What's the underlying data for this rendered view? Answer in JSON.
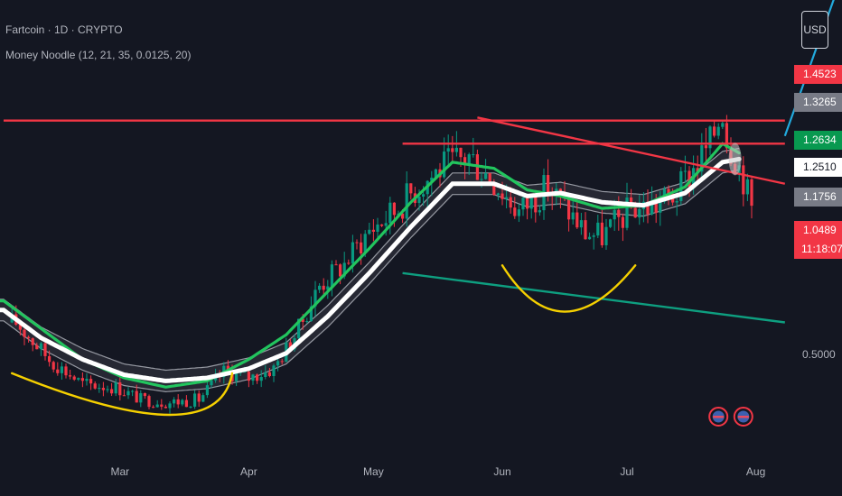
{
  "header": {
    "symbol_line": "Fartcoin · 1D · CRYPTO",
    "indicator_line": "Money Noodle (12, 21, 35, 0.0125, 20)"
  },
  "currency_button": "USD",
  "price_tags": [
    {
      "label": "1.4523",
      "color": "#f23645"
    },
    {
      "label": "1.3265",
      "color": "#787b86"
    },
    {
      "label": "1.2634",
      "color": "#089950"
    },
    {
      "label": "1.2510",
      "color": "#ffffff",
      "text_color": "#131722"
    },
    {
      "label": "1.1756",
      "color": "#787b86"
    },
    {
      "label": "1.0489",
      "color": "#f23645"
    }
  ],
  "countdown": "11:18:07",
  "price_axis_labels": [
    "0.5000"
  ],
  "colors": {
    "up": "#089981",
    "down": "#f23645",
    "band": "#9598a1",
    "fast_ma": "#22c55e",
    "slow_ma": "#ffffff",
    "resistance": "#f23645",
    "support": "#0e9f80",
    "cup": "#f5d000",
    "arrow": "#22aadd",
    "background": "#141722"
  },
  "chart_data": {
    "type": "candlestick",
    "x_ticks": [
      "Mar",
      "Apr",
      "May",
      "Jun",
      "Jul",
      "Aug"
    ],
    "ylim": [
      0.38,
      1.58
    ],
    "close_path": [
      [
        "2025-02-04",
        0.68
      ],
      [
        "2025-02-12",
        0.56
      ],
      [
        "2025-02-20",
        0.48
      ],
      [
        "2025-02-28",
        0.47
      ],
      [
        "2025-03-06",
        0.43
      ],
      [
        "2025-03-13",
        0.42
      ],
      [
        "2025-03-20",
        0.43
      ],
      [
        "2025-03-26",
        0.52
      ],
      [
        "2025-04-01",
        0.5
      ],
      [
        "2025-04-07",
        0.53
      ],
      [
        "2025-04-13",
        0.66
      ],
      [
        "2025-04-18",
        0.8
      ],
      [
        "2025-04-24",
        0.87
      ],
      [
        "2025-04-30",
        0.98
      ],
      [
        "2025-05-06",
        1.04
      ],
      [
        "2025-05-10",
        1.1
      ],
      [
        "2025-05-17",
        1.18
      ],
      [
        "2025-05-24",
        1.22
      ],
      [
        "2025-05-30",
        1.14
      ],
      [
        "2025-06-05",
        1.04
      ],
      [
        "2025-06-12",
        1.12
      ],
      [
        "2025-06-17",
        1.04
      ],
      [
        "2025-06-21",
        0.97
      ],
      [
        "2025-06-25",
        0.96
      ],
      [
        "2025-07-02",
        1.05
      ],
      [
        "2025-07-08",
        1.06
      ],
      [
        "2025-07-13",
        1.1
      ],
      [
        "2025-07-18",
        1.2
      ],
      [
        "2025-07-21",
        1.26
      ],
      [
        "2025-07-24",
        1.38
      ],
      [
        "2025-07-25",
        1.28
      ],
      [
        "2025-07-27",
        1.22
      ],
      [
        "2025-07-29",
        1.15
      ],
      [
        "2025-07-31",
        1.05
      ]
    ],
    "fast_ma": [
      [
        "2025-02-01",
        0.75
      ],
      [
        "2025-02-10",
        0.66
      ],
      [
        "2025-02-20",
        0.56
      ],
      [
        "2025-03-02",
        0.5
      ],
      [
        "2025-03-12",
        0.47
      ],
      [
        "2025-03-22",
        0.49
      ],
      [
        "2025-04-01",
        0.56
      ],
      [
        "2025-04-10",
        0.64
      ],
      [
        "2025-04-20",
        0.78
      ],
      [
        "2025-04-30",
        0.92
      ],
      [
        "2025-05-10",
        1.07
      ],
      [
        "2025-05-20",
        1.2
      ],
      [
        "2025-05-30",
        1.18
      ],
      [
        "2025-06-07",
        1.11
      ],
      [
        "2025-06-15",
        1.09
      ],
      [
        "2025-06-25",
        1.05
      ],
      [
        "2025-07-05",
        1.06
      ],
      [
        "2025-07-15",
        1.12
      ],
      [
        "2025-07-24",
        1.26
      ],
      [
        "2025-07-28",
        1.23
      ]
    ],
    "slow_ma": [
      [
        "2025-02-01",
        0.72
      ],
      [
        "2025-02-10",
        0.63
      ],
      [
        "2025-02-20",
        0.56
      ],
      [
        "2025-03-02",
        0.51
      ],
      [
        "2025-03-12",
        0.49
      ],
      [
        "2025-03-22",
        0.5
      ],
      [
        "2025-04-01",
        0.53
      ],
      [
        "2025-04-10",
        0.58
      ],
      [
        "2025-04-20",
        0.7
      ],
      [
        "2025-04-30",
        0.84
      ],
      [
        "2025-05-10",
        0.99
      ],
      [
        "2025-05-20",
        1.13
      ],
      [
        "2025-05-30",
        1.13
      ],
      [
        "2025-06-07",
        1.09
      ],
      [
        "2025-06-15",
        1.1
      ],
      [
        "2025-06-25",
        1.07
      ],
      [
        "2025-07-05",
        1.06
      ],
      [
        "2025-07-15",
        1.1
      ],
      [
        "2025-07-24",
        1.2
      ],
      [
        "2025-07-28",
        1.21
      ]
    ],
    "band_offset": 0.035,
    "resistance_lines": [
      {
        "from": [
          "2025-02-01",
          1.335
        ],
        "to": [
          "2025-08-08",
          1.335
        ]
      },
      {
        "from": [
          "2025-05-08",
          1.26
        ],
        "to": [
          "2025-08-08",
          1.26
        ]
      },
      {
        "from": [
          "2025-05-26",
          1.345
        ],
        "to": [
          "2025-08-08",
          1.13
        ]
      }
    ],
    "support_line": {
      "from": [
        "2025-05-08",
        0.84
      ],
      "to": [
        "2025-08-08",
        0.68
      ]
    },
    "cup_arcs": [
      {
        "start": [
          "2025-02-03",
          0.515
        ],
        "bottom": [
          "2025-03-13",
          0.38
        ],
        "end": [
          "2025-03-28",
          0.515
        ]
      },
      {
        "start": [
          "2025-06-01",
          0.865
        ],
        "bottom": [
          "2025-06-16",
          0.715
        ],
        "end": [
          "2025-07-03",
          0.865
        ]
      }
    ],
    "arrow": {
      "from": [
        "2025-08-08",
        1.285
      ],
      "to": [
        "2025-08-21",
        1.775
      ]
    }
  }
}
